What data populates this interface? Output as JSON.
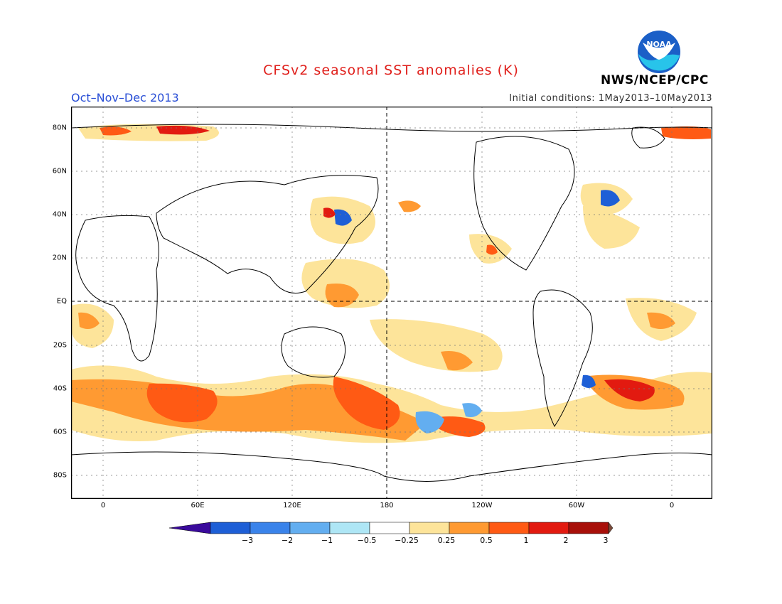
{
  "title": "CFSv2 seasonal SST anomalies (K)",
  "period": "Oct–Nov–Dec 2013",
  "initial_conditions": "Initial conditions: 1May2013–10May2013",
  "agency": "NWS/NCEP/CPC",
  "logo_text": "NOAA",
  "lon_labels": [
    "0",
    "60E",
    "120E",
    "180",
    "120W",
    "60W",
    "0"
  ],
  "lat_labels": [
    "80N",
    "60N",
    "40N",
    "20N",
    "EQ",
    "20S",
    "40S",
    "60S",
    "80S"
  ],
  "colorbar": {
    "colors": [
      "#3a0a9c",
      "#1e5fd6",
      "#3a83ea",
      "#63aef0",
      "#aee6f5",
      "#ffffff",
      "#fde49a",
      "#ff9a32",
      "#ff5a14",
      "#e21a10",
      "#a8100a",
      "#7a4a3a"
    ],
    "labels": [
      "−3",
      "−2",
      "−1",
      "−0.5",
      "−0.25",
      "0.25",
      "0.5",
      "1",
      "2",
      "3"
    ]
  }
}
